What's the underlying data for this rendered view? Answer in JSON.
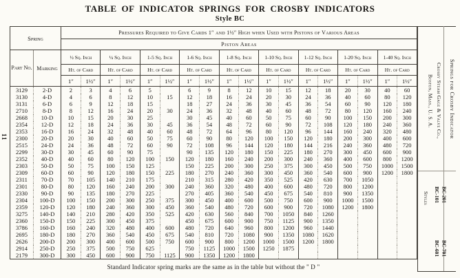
{
  "page": {
    "title": "TABLE OF INDICATOR SPRINGS FOR CROSBY INDICATORS",
    "subtitle": "Style BC",
    "page_number": "11",
    "footnote": "Standard Indicator spring marks are the same as in the table but without the \" D \""
  },
  "table": {
    "spring_header": "Spring",
    "pressures_header": "Pressures Required to Give Cards 1″ and 1½″ High when Used with Pistons of Various Areas",
    "piston_areas_header": "Piston Areas",
    "part_no_label": "Part No.",
    "marking_label": "Marking",
    "ht_of_card_label": "Ht. of Card",
    "col_1in": "1″",
    "col_1half": "1½″",
    "areas": [
      "½ Sq. Inch",
      "¼ Sq. Inch",
      "1-5 Sq. Inch",
      "1-6 Sq. Inch",
      "1-8 Sq. Inch",
      "1-10 Sq. Inch",
      "1-12 Sq. Inch",
      "1-20 Sq. Inch",
      "1-40 Sq. Inch"
    ],
    "rows": [
      {
        "part": "3129",
        "marking": "2-D",
        "values": [
          "2",
          "3",
          "4",
          "6",
          "5",
          "",
          "6",
          "9",
          "8",
          "12",
          "10",
          "15",
          "12",
          "18",
          "20",
          "30",
          "40",
          "60"
        ]
      },
      {
        "part": "3130",
        "marking": "4-D",
        "values": [
          "4",
          "6",
          "8",
          "12",
          "10",
          "15",
          "12",
          "18",
          "16",
          "24",
          "20",
          "30",
          "24",
          "36",
          "40",
          "60",
          "80",
          "120"
        ]
      },
      {
        "part": "3131",
        "marking": "6-D",
        "values": [
          "6",
          "9",
          "12",
          "18",
          "15",
          "",
          "18",
          "27",
          "24",
          "36",
          "30",
          "45",
          "36",
          "54",
          "60",
          "90",
          "120",
          "180"
        ]
      },
      {
        "part": "2710",
        "marking": "8-D",
        "values": [
          "8",
          "12",
          "16",
          "24",
          "20",
          "30",
          "24",
          "36",
          "32",
          "48",
          "40",
          "60",
          "48",
          "72",
          "80",
          "120",
          "160",
          "240"
        ]
      },
      {
        "part": "2668",
        "marking": "10-D",
        "values": [
          "10",
          "15",
          "20",
          "30",
          "25",
          "",
          "30",
          "45",
          "40",
          "60",
          "50",
          "75",
          "60",
          "90",
          "100",
          "150",
          "200",
          "300"
        ]
      },
      {
        "part": "2354",
        "marking": "12-D",
        "values": [
          "12",
          "18",
          "24",
          "36",
          "30",
          "45",
          "36",
          "54",
          "48",
          "72",
          "60",
          "90",
          "72",
          "108",
          "120",
          "180",
          "240",
          "360"
        ]
      },
      {
        "part": "2353",
        "marking": "16-D",
        "values": [
          "16",
          "24",
          "32",
          "48",
          "40",
          "60",
          "48",
          "72",
          "64",
          "96",
          "80",
          "120",
          "96",
          "144",
          "160",
          "240",
          "320",
          "480"
        ]
      },
      {
        "part": "2300",
        "marking": "20-D",
        "values": [
          "20",
          "30",
          "40",
          "60",
          "50",
          "75",
          "60",
          "90",
          "80",
          "120",
          "100",
          "150",
          "120",
          "180",
          "200",
          "300",
          "400",
          "600"
        ]
      },
      {
        "part": "2515",
        "marking": "24-D",
        "values": [
          "24",
          "36",
          "48",
          "72",
          "60",
          "90",
          "72",
          "108",
          "96",
          "144",
          "120",
          "180",
          "144",
          "216",
          "240",
          "360",
          "480",
          "720"
        ]
      },
      {
        "part": "2299",
        "marking": "30-D",
        "values": [
          "30",
          "45",
          "60",
          "90",
          "75",
          "",
          "90",
          "135",
          "120",
          "180",
          "150",
          "225",
          "180",
          "270",
          "300",
          "450",
          "600",
          "900"
        ]
      },
      {
        "part": "2352",
        "marking": "40-D",
        "values": [
          "40",
          "60",
          "80",
          "120",
          "100",
          "150",
          "120",
          "180",
          "160",
          "240",
          "200",
          "300",
          "240",
          "360",
          "400",
          "600",
          "800",
          "1200"
        ]
      },
      {
        "part": "2303",
        "marking": "50-D",
        "values": [
          "50",
          "75",
          "100",
          "150",
          "125",
          "",
          "150",
          "225",
          "200",
          "300",
          "250",
          "375",
          "300",
          "450",
          "500",
          "750",
          "1000",
          "1500"
        ]
      },
      {
        "part": "2309",
        "marking": "60-D",
        "values": [
          "60",
          "90",
          "120",
          "180",
          "150",
          "225",
          "180",
          "270",
          "240",
          "360",
          "300",
          "450",
          "360",
          "540",
          "600",
          "900",
          "1200",
          "1800"
        ]
      },
      {
        "part": "2311",
        "marking": "70-D",
        "values": [
          "70",
          "105",
          "140",
          "210",
          "175",
          "",
          "210",
          "315",
          "280",
          "420",
          "350",
          "525",
          "420",
          "630",
          "700",
          "1050",
          "",
          ""
        ]
      },
      {
        "part": "2301",
        "marking": "80-D",
        "values": [
          "80",
          "120",
          "160",
          "240",
          "200",
          "300",
          "240",
          "360",
          "320",
          "480",
          "400",
          "600",
          "480",
          "720",
          "800",
          "1200",
          "",
          ""
        ]
      },
      {
        "part": "2330",
        "marking": "90-D",
        "values": [
          "90",
          "135",
          "180",
          "270",
          "225",
          "",
          "270",
          "405",
          "360",
          "540",
          "450",
          "675",
          "540",
          "810",
          "900",
          "1350",
          "",
          ""
        ]
      },
      {
        "part": "2304",
        "marking": "100-D",
        "values": [
          "100",
          "150",
          "200",
          "300",
          "250",
          "375",
          "300",
          "450",
          "400",
          "600",
          "500",
          "750",
          "600",
          "900",
          "1000",
          "1500",
          "",
          ""
        ]
      },
      {
        "part": "2359",
        "marking": "120-D",
        "values": [
          "120",
          "180",
          "240",
          "360",
          "300",
          "450",
          "360",
          "540",
          "480",
          "720",
          "600",
          "900",
          "720",
          "1080",
          "1200",
          "1800",
          "",
          ""
        ]
      },
      {
        "part": "3275",
        "marking": "140-D",
        "values": [
          "140",
          "210",
          "280",
          "420",
          "350",
          "525",
          "420",
          "630",
          "560",
          "840",
          "700",
          "1050",
          "840",
          "1260",
          "",
          "",
          "",
          ""
        ]
      },
      {
        "part": "2360",
        "marking": "150-D",
        "values": [
          "150",
          "225",
          "300",
          "450",
          "375",
          "",
          "450",
          "675",
          "600",
          "900",
          "750",
          "1125",
          "900",
          "1350",
          "",
          "",
          "",
          ""
        ]
      },
      {
        "part": "3786",
        "marking": "160-D",
        "values": [
          "160",
          "240",
          "320",
          "480",
          "400",
          "600",
          "480",
          "720",
          "640",
          "960",
          "800",
          "1200",
          "960",
          "1440",
          "",
          "",
          "",
          ""
        ]
      },
      {
        "part": "2695",
        "marking": "180-D",
        "values": [
          "180",
          "270",
          "360",
          "540",
          "450",
          "675",
          "540",
          "810",
          "720",
          "1080",
          "900",
          "1350",
          "1080",
          "1620",
          "",
          "",
          "",
          ""
        ]
      },
      {
        "part": "2626",
        "marking": "200-D",
        "values": [
          "200",
          "300",
          "400",
          "600",
          "500",
          "750",
          "600",
          "900",
          "800",
          "1200",
          "1000",
          "1500",
          "1200",
          "1800",
          "",
          "",
          "",
          ""
        ]
      },
      {
        "part": "2914",
        "marking": "250-D",
        "values": [
          "250",
          "375",
          "500",
          "750",
          "625",
          "",
          "750",
          "1125",
          "1000",
          "1500",
          "1250",
          "1875",
          "",
          "",
          "",
          "",
          "",
          ""
        ]
      },
      {
        "part": "2179",
        "marking": "300-D",
        "values": [
          "300",
          "450",
          "600",
          "900",
          "750",
          "1125",
          "900",
          "1350",
          "1200",
          "1800",
          "",
          "",
          "",
          "",
          "",
          "",
          "",
          ""
        ]
      }
    ]
  },
  "sidebar": {
    "springs_label": "Springs for Crosby Indicator",
    "company_line1": "Crosby Steam Gage & Valve Co.,",
    "company_line2": "Boston, Mass., U. S. A.",
    "styles_label": "Styles",
    "style_1": "BC-101",
    "style_2": "BC-201",
    "style_3": "BC-601",
    "style_4": "BC-701"
  }
}
